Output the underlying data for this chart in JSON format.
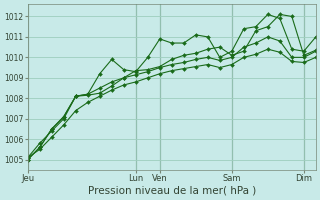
{
  "background_color": "#c8eae8",
  "grid_color": "#9ecebe",
  "line_color": "#1a6b1a",
  "vline_color": "#557766",
  "title": "Pression niveau de la mer( hPa )",
  "title_fontsize": 7.5,
  "ylim": [
    1004.5,
    1012.6
  ],
  "yticks": [
    1005,
    1006,
    1007,
    1008,
    1009,
    1010,
    1011,
    1012
  ],
  "ytick_fontsize": 5.5,
  "xtick_fontsize": 6.0,
  "x_day_labels": [
    "Jeu",
    "Lun",
    "Ven",
    "Sam",
    "Dim"
  ],
  "x_day_positions": [
    0,
    9,
    11,
    17,
    23
  ],
  "xlim": [
    0,
    24
  ],
  "series1": [
    1005.0,
    1005.6,
    1006.5,
    1007.1,
    1008.1,
    1008.15,
    1008.25,
    1008.6,
    1009.0,
    1009.35,
    1009.4,
    1009.55,
    1009.9,
    1010.1,
    1010.2,
    1010.4,
    1010.5,
    1010.1,
    1010.3,
    1011.3,
    1011.5,
    1012.1,
    1012.0,
    1010.1,
    1010.35
  ],
  "series2": [
    1005.0,
    1005.6,
    1006.5,
    1007.1,
    1008.1,
    1008.2,
    1009.2,
    1009.9,
    1009.4,
    1009.3,
    1010.0,
    1010.9,
    1010.7,
    1010.7,
    1011.1,
    1011.0,
    1010.0,
    1010.3,
    1011.4,
    1011.5,
    1012.1,
    1011.9,
    1010.4,
    1010.3,
    1011.0
  ],
  "series3": [
    1005.1,
    1005.8,
    1006.4,
    1007.0,
    1008.1,
    1008.2,
    1008.5,
    1008.8,
    1009.0,
    1009.15,
    1009.3,
    1009.5,
    1009.65,
    1009.75,
    1009.9,
    1010.0,
    1009.85,
    1010.0,
    1010.5,
    1010.7,
    1011.0,
    1010.8,
    1010.0,
    1010.0,
    1010.3
  ],
  "series4": [
    1005.1,
    1005.5,
    1006.1,
    1006.7,
    1007.4,
    1007.8,
    1008.1,
    1008.4,
    1008.65,
    1008.8,
    1009.0,
    1009.2,
    1009.35,
    1009.45,
    1009.55,
    1009.65,
    1009.5,
    1009.65,
    1010.0,
    1010.15,
    1010.4,
    1010.25,
    1009.8,
    1009.75,
    1010.0
  ]
}
